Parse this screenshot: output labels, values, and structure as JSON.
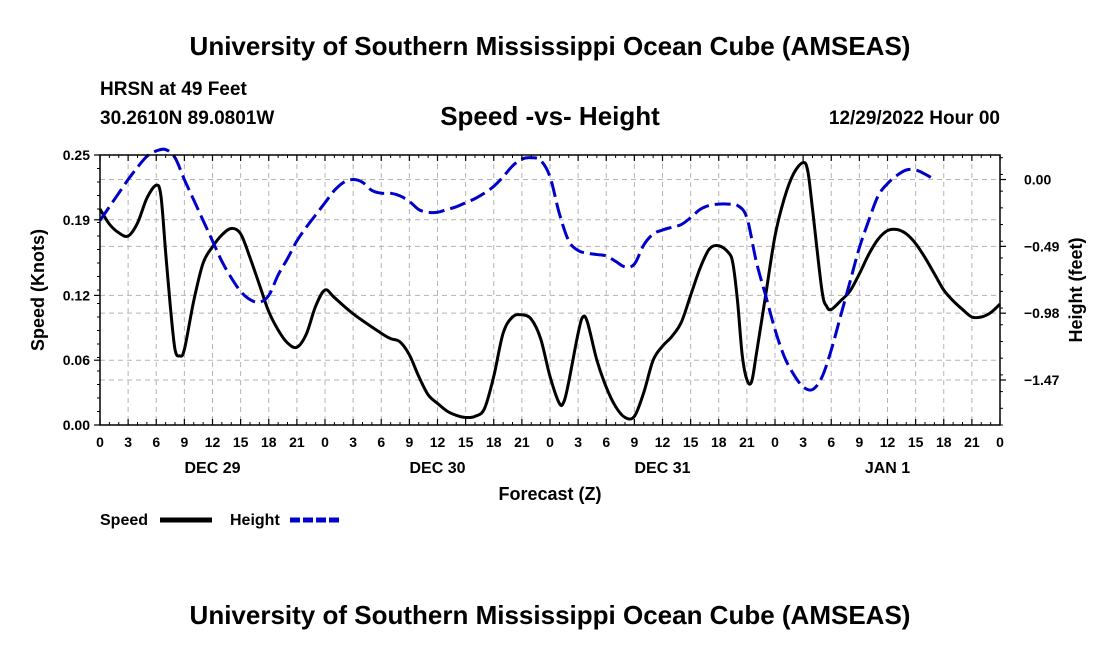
{
  "header": {
    "title": "University of Southern Mississippi Ocean Cube (AMSEAS)",
    "station": "HRSN at 49 Feet",
    "coords": "30.2610N  89.0801W",
    "date": "12/29/2022 Hour 00",
    "footer_title": "University of Southern Mississippi Ocean Cube (AMSEAS)"
  },
  "chart_data": {
    "type": "line",
    "title": "Speed -vs- Height",
    "xlabel": "Forecast (Z)",
    "ylabel_left": "Speed (Knots)",
    "ylabel_right": "Height (feet)",
    "x_range_hours": [
      0,
      96
    ],
    "y_left_range": [
      0,
      0.25
    ],
    "y_left_ticks": [
      "0.00",
      "0.06",
      "0.12",
      "0.19",
      "0.25"
    ],
    "y_right_range": [
      -1.8,
      0.18
    ],
    "y_right_ticks": [
      {
        "value": 0.0,
        "label": "0.00"
      },
      {
        "value": -0.49,
        "label": "−0.49"
      },
      {
        "value": -0.98,
        "label": "−0.98"
      },
      {
        "value": -1.47,
        "label": "−1.47"
      }
    ],
    "x_tick_labels": [
      "0",
      "3",
      "6",
      "9",
      "12",
      "15",
      "18",
      "21",
      "0",
      "3",
      "6",
      "9",
      "12",
      "15",
      "18",
      "21",
      "0",
      "3",
      "6",
      "9",
      "12",
      "15",
      "18",
      "21",
      "0",
      "3",
      "6",
      "9",
      "12",
      "15",
      "18",
      "21",
      "0"
    ],
    "day_labels": [
      {
        "hour": 12,
        "label": "DEC 29"
      },
      {
        "hour": 36,
        "label": "DEC 30"
      },
      {
        "hour": 60,
        "label": "DEC 31"
      },
      {
        "hour": 84,
        "label": "JAN 1"
      }
    ],
    "grid": true,
    "legend": [
      {
        "name": "Speed",
        "color": "#000000",
        "dash": "solid"
      },
      {
        "name": "Height",
        "color": "#0000cc",
        "dash": "dashed"
      }
    ],
    "series": [
      {
        "name": "Speed",
        "axis": "left",
        "color": "#000000",
        "points": [
          [
            0,
            0.2
          ],
          [
            1,
            0.186
          ],
          [
            2,
            0.178
          ],
          [
            3,
            0.175
          ],
          [
            4,
            0.187
          ],
          [
            5,
            0.21
          ],
          [
            6,
            0.222
          ],
          [
            6.5,
            0.212
          ],
          [
            7,
            0.16
          ],
          [
            7.5,
            0.11
          ],
          [
            8,
            0.07
          ],
          [
            8.5,
            0.064
          ],
          [
            9,
            0.07
          ],
          [
            10,
            0.115
          ],
          [
            11,
            0.15
          ],
          [
            12,
            0.165
          ],
          [
            13,
            0.176
          ],
          [
            14,
            0.182
          ],
          [
            15,
            0.177
          ],
          [
            16,
            0.155
          ],
          [
            17,
            0.13
          ],
          [
            18,
            0.105
          ],
          [
            19,
            0.088
          ],
          [
            20,
            0.076
          ],
          [
            21,
            0.072
          ],
          [
            22,
            0.084
          ],
          [
            23,
            0.11
          ],
          [
            24,
            0.125
          ],
          [
            25,
            0.118
          ],
          [
            27,
            0.103
          ],
          [
            30,
            0.085
          ],
          [
            31,
            0.08
          ],
          [
            32,
            0.077
          ],
          [
            33,
            0.065
          ],
          [
            34,
            0.045
          ],
          [
            35,
            0.028
          ],
          [
            36,
            0.02
          ],
          [
            37,
            0.013
          ],
          [
            38,
            0.009
          ],
          [
            39,
            0.007
          ],
          [
            40,
            0.008
          ],
          [
            41,
            0.015
          ],
          [
            42,
            0.045
          ],
          [
            43,
            0.085
          ],
          [
            44,
            0.1
          ],
          [
            45,
            0.102
          ],
          [
            46,
            0.098
          ],
          [
            47,
            0.08
          ],
          [
            48,
            0.045
          ],
          [
            49,
            0.02
          ],
          [
            49.5,
            0.022
          ],
          [
            50,
            0.04
          ],
          [
            51,
            0.085
          ],
          [
            51.5,
            0.1
          ],
          [
            52,
            0.095
          ],
          [
            53,
            0.06
          ],
          [
            54,
            0.035
          ],
          [
            55,
            0.017
          ],
          [
            56,
            0.007
          ],
          [
            57,
            0.008
          ],
          [
            58,
            0.03
          ],
          [
            59,
            0.06
          ],
          [
            60,
            0.073
          ],
          [
            61,
            0.082
          ],
          [
            62,
            0.095
          ],
          [
            63,
            0.12
          ],
          [
            64,
            0.145
          ],
          [
            65,
            0.163
          ],
          [
            66,
            0.166
          ],
          [
            67,
            0.16
          ],
          [
            67.5,
            0.15
          ],
          [
            68,
            0.115
          ],
          [
            68.5,
            0.065
          ],
          [
            69,
            0.042
          ],
          [
            69.5,
            0.04
          ],
          [
            70,
            0.065
          ],
          [
            71,
            0.12
          ],
          [
            72,
            0.175
          ],
          [
            73,
            0.21
          ],
          [
            74,
            0.233
          ],
          [
            75,
            0.243
          ],
          [
            75.5,
            0.235
          ],
          [
            76,
            0.2
          ],
          [
            77,
            0.125
          ],
          [
            77.5,
            0.11
          ],
          [
            78,
            0.107
          ],
          [
            79,
            0.115
          ],
          [
            80,
            0.124
          ],
          [
            81,
            0.14
          ],
          [
            82,
            0.158
          ],
          [
            83,
            0.172
          ],
          [
            84,
            0.18
          ],
          [
            85,
            0.181
          ],
          [
            86,
            0.177
          ],
          [
            87,
            0.168
          ],
          [
            88,
            0.155
          ],
          [
            89,
            0.14
          ],
          [
            90,
            0.125
          ],
          [
            91,
            0.115
          ],
          [
            92,
            0.107
          ],
          [
            93,
            0.1
          ],
          [
            94,
            0.1
          ],
          [
            95,
            0.104
          ],
          [
            96,
            0.112
          ]
        ]
      },
      {
        "name": "Height",
        "axis": "right",
        "color": "#0000cc",
        "points": [
          [
            0,
            -0.3
          ],
          [
            1,
            -0.2
          ],
          [
            2,
            -0.1
          ],
          [
            3,
            0.0
          ],
          [
            4,
            0.09
          ],
          [
            5,
            0.17
          ],
          [
            6,
            0.21
          ],
          [
            7,
            0.22
          ],
          [
            8,
            0.16
          ],
          [
            9,
            0.0
          ],
          [
            10,
            -0.15
          ],
          [
            11,
            -0.3
          ],
          [
            12,
            -0.45
          ],
          [
            13,
            -0.6
          ],
          [
            14,
            -0.72
          ],
          [
            15,
            -0.82
          ],
          [
            16,
            -0.88
          ],
          [
            17,
            -0.9
          ],
          [
            18,
            -0.85
          ],
          [
            19,
            -0.7
          ],
          [
            20,
            -0.58
          ],
          [
            21,
            -0.45
          ],
          [
            22,
            -0.35
          ],
          [
            23,
            -0.26
          ],
          [
            24,
            -0.17
          ],
          [
            25,
            -0.08
          ],
          [
            26,
            -0.02
          ],
          [
            27,
            0.0
          ],
          [
            28,
            -0.02
          ],
          [
            29,
            -0.08
          ],
          [
            30,
            -0.1
          ],
          [
            31,
            -0.1
          ],
          [
            32,
            -0.12
          ],
          [
            33,
            -0.16
          ],
          [
            34,
            -0.22
          ],
          [
            35,
            -0.24
          ],
          [
            36,
            -0.24
          ],
          [
            37,
            -0.22
          ],
          [
            38,
            -0.2
          ],
          [
            39,
            -0.17
          ],
          [
            40,
            -0.14
          ],
          [
            41,
            -0.1
          ],
          [
            42,
            -0.05
          ],
          [
            43,
            0.02
          ],
          [
            44,
            0.1
          ],
          [
            45,
            0.15
          ],
          [
            46,
            0.16
          ],
          [
            47,
            0.14
          ],
          [
            48,
            0.02
          ],
          [
            49,
            -0.25
          ],
          [
            50,
            -0.45
          ],
          [
            51,
            -0.52
          ],
          [
            52,
            -0.54
          ],
          [
            53,
            -0.55
          ],
          [
            54,
            -0.56
          ],
          [
            55,
            -0.6
          ],
          [
            56,
            -0.64
          ],
          [
            57,
            -0.62
          ],
          [
            58,
            -0.48
          ],
          [
            59,
            -0.4
          ],
          [
            60,
            -0.37
          ],
          [
            61,
            -0.35
          ],
          [
            62,
            -0.33
          ],
          [
            63,
            -0.28
          ],
          [
            64,
            -0.22
          ],
          [
            65,
            -0.19
          ],
          [
            66,
            -0.18
          ],
          [
            67,
            -0.18
          ],
          [
            68,
            -0.19
          ],
          [
            69,
            -0.28
          ],
          [
            70,
            -0.6
          ],
          [
            71,
            -0.85
          ],
          [
            72,
            -1.1
          ],
          [
            73,
            -1.3
          ],
          [
            74,
            -1.43
          ],
          [
            75,
            -1.52
          ],
          [
            76,
            -1.54
          ],
          [
            77,
            -1.45
          ],
          [
            78,
            -1.25
          ],
          [
            79,
            -1.0
          ],
          [
            80,
            -0.75
          ],
          [
            81,
            -0.5
          ],
          [
            82,
            -0.3
          ],
          [
            83,
            -0.12
          ],
          [
            84,
            -0.03
          ],
          [
            85,
            0.03
          ],
          [
            86,
            0.07
          ],
          [
            87,
            0.07
          ],
          [
            88,
            0.04
          ],
          [
            89,
            0.0
          ]
        ]
      }
    ]
  }
}
